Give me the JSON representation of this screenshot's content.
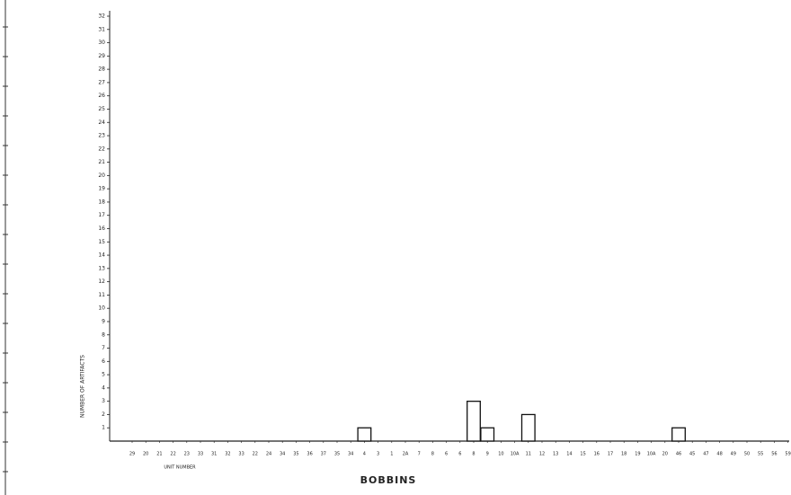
{
  "chart_data": {
    "type": "bar",
    "y_label": "NUMBER OF ARTIFACTS",
    "x_label": "BOBBINS",
    "x_sublabel": "UNIT NUMBER",
    "categories": [
      "29",
      "20",
      "21",
      "22",
      "23",
      "33",
      "31",
      "32",
      "33",
      "22",
      "24",
      "34",
      "35",
      "36",
      "37",
      "35",
      "34",
      "4",
      "3",
      "1",
      "2A",
      "7",
      "8",
      "6",
      "6",
      "8",
      "9",
      "10",
      "10A",
      "11",
      "12",
      "13",
      "14",
      "15",
      "16",
      "17",
      "18",
      "19",
      "10A",
      "20",
      "46",
      "45",
      "47",
      "48",
      "49",
      "50",
      "55",
      "56",
      "59"
    ],
    "values": [
      0,
      0,
      0,
      0,
      0,
      0,
      0,
      0,
      0,
      0,
      0,
      0,
      0,
      0,
      0,
      0,
      0,
      1,
      0,
      0,
      0,
      0,
      0,
      0,
      0,
      3,
      1,
      0,
      0,
      2,
      0,
      0,
      0,
      0,
      0,
      0,
      0,
      0,
      0,
      0,
      1,
      0,
      0,
      0,
      0,
      0,
      0,
      0,
      0
    ],
    "color": "#ffffff",
    "ylim": [
      0,
      32
    ],
    "yticks": [
      1,
      2,
      3,
      4,
      5,
      6,
      7,
      8,
      9,
      10,
      11,
      12,
      13,
      14,
      15,
      16,
      17,
      18,
      19,
      20,
      21,
      22,
      23,
      24,
      25,
      26,
      27,
      28,
      29,
      30,
      31,
      32
    ],
    "grid": false
  }
}
